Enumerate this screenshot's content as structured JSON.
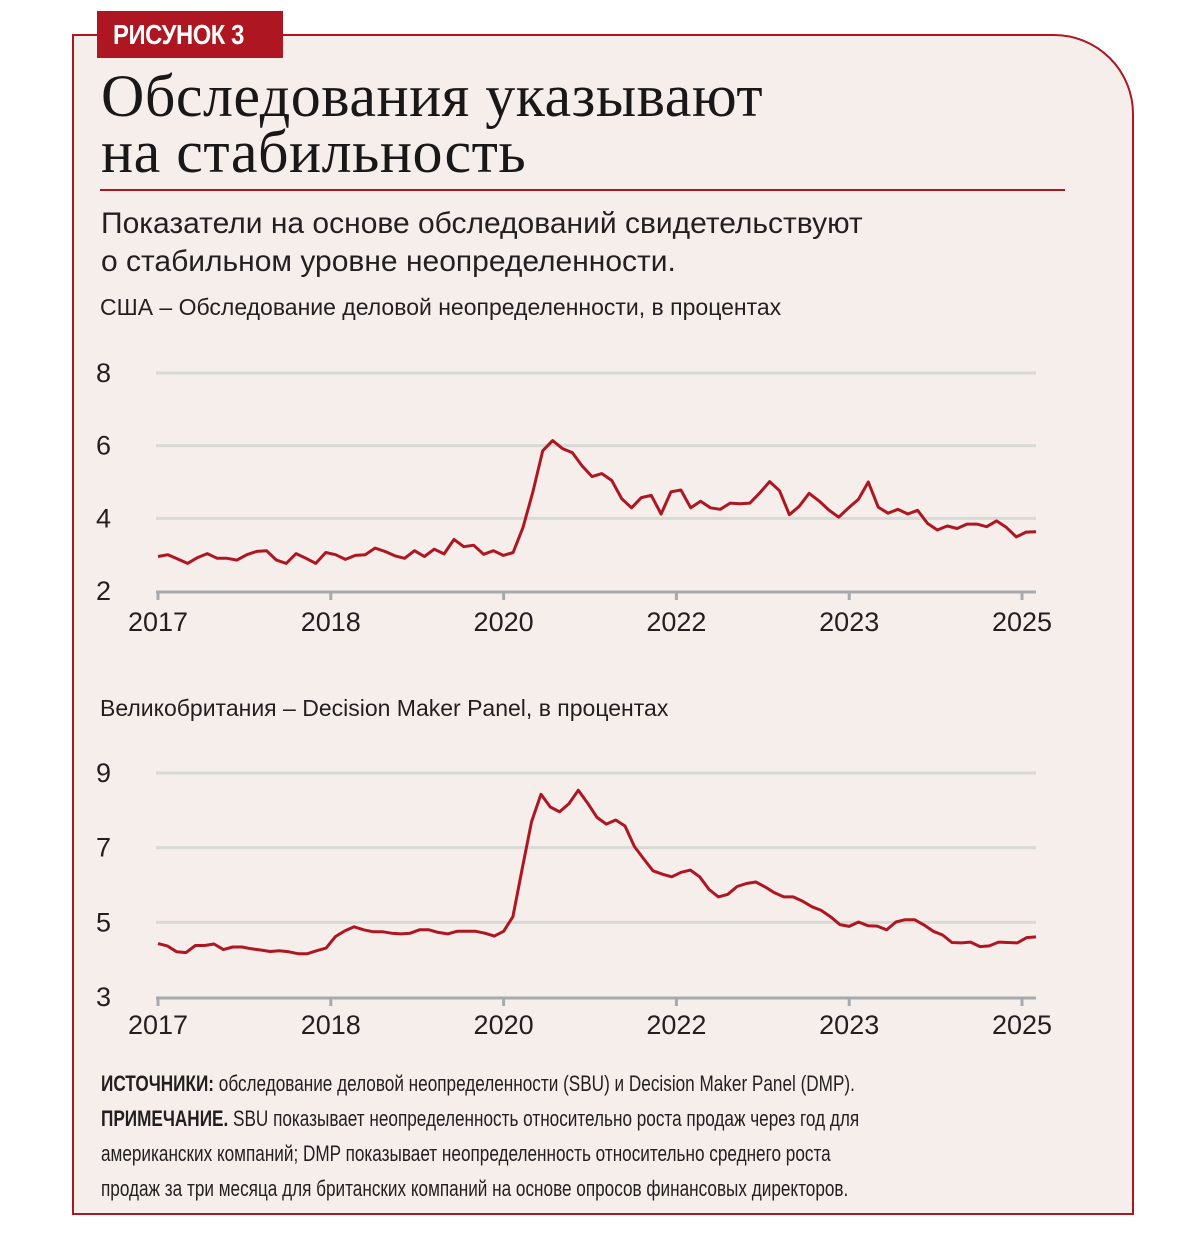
{
  "figure_label": "РИСУНОК 3",
  "title_lines": [
    "Обследования указывают",
    "на стабильность"
  ],
  "subtitle_lines": [
    "Показатели на основе обследований свидетельствуют",
    "о стабильном уровне неопределенности."
  ],
  "colors": {
    "accent": "#ae1622",
    "background": "#f6eeeb",
    "grid": "#d9d9d6",
    "axis": "#a7a9ac"
  },
  "chart_data": [
    {
      "type": "line",
      "title": "США – Обследование деловой неопределенности, в процентах",
      "x_tick_labels": [
        "2017",
        "2018",
        "2020",
        "2022",
        "2023",
        "2025"
      ],
      "y_ticks": [
        2,
        4,
        6,
        8
      ],
      "ylim": [
        2,
        8
      ],
      "grid": true,
      "values": [
        2.95,
        3.0,
        2.88,
        2.76,
        2.92,
        3.03,
        2.9,
        2.9,
        2.85,
        3.0,
        3.09,
        3.11,
        2.85,
        2.76,
        3.03,
        2.9,
        2.76,
        3.06,
        3.0,
        2.87,
        2.98,
        3.0,
        3.18,
        3.09,
        2.97,
        2.9,
        3.11,
        2.95,
        3.15,
        3.02,
        3.42,
        3.22,
        3.26,
        3.01,
        3.11,
        2.98,
        3.06,
        3.75,
        4.73,
        5.86,
        6.14,
        5.92,
        5.81,
        5.44,
        5.15,
        5.23,
        5.04,
        4.54,
        4.29,
        4.57,
        4.63,
        4.12,
        4.73,
        4.78,
        4.29,
        4.47,
        4.29,
        4.25,
        4.42,
        4.4,
        4.42,
        4.7,
        5.01,
        4.76,
        4.1,
        4.33,
        4.69,
        4.48,
        4.23,
        4.03,
        4.29,
        4.52,
        5.0,
        4.31,
        4.14,
        4.25,
        4.12,
        4.22,
        3.86,
        3.68,
        3.79,
        3.72,
        3.84,
        3.84,
        3.77,
        3.93,
        3.75,
        3.49,
        3.62,
        3.63
      ]
    },
    {
      "type": "line",
      "title": "Великобритания – Decision Maker Panel, в процентах",
      "x_tick_labels": [
        "2017",
        "2018",
        "2020",
        "2022",
        "2023",
        "2025"
      ],
      "y_ticks": [
        3,
        5,
        7,
        9
      ],
      "ylim": [
        3,
        9
      ],
      "grid": true,
      "values": [
        4.43,
        4.37,
        4.21,
        4.19,
        4.38,
        4.38,
        4.42,
        4.27,
        4.34,
        4.34,
        4.29,
        4.26,
        4.22,
        4.24,
        4.21,
        4.16,
        4.16,
        4.24,
        4.31,
        4.62,
        4.77,
        4.88,
        4.8,
        4.75,
        4.75,
        4.71,
        4.69,
        4.71,
        4.8,
        4.8,
        4.73,
        4.69,
        4.76,
        4.76,
        4.76,
        4.71,
        4.63,
        4.76,
        5.15,
        6.45,
        7.7,
        8.43,
        8.09,
        7.96,
        8.18,
        8.54,
        8.19,
        7.81,
        7.63,
        7.74,
        7.58,
        7.03,
        6.7,
        6.38,
        6.29,
        6.22,
        6.34,
        6.4,
        6.22,
        5.88,
        5.68,
        5.75,
        5.96,
        6.04,
        6.08,
        5.95,
        5.79,
        5.68,
        5.68,
        5.57,
        5.42,
        5.32,
        5.15,
        4.94,
        4.89,
        5.01,
        4.91,
        4.9,
        4.8,
        5.01,
        5.07,
        5.07,
        4.93,
        4.76,
        4.66,
        4.46,
        4.45,
        4.47,
        4.35,
        4.37,
        4.47,
        4.46,
        4.45,
        4.59,
        4.61
      ]
    }
  ],
  "notes": {
    "sources_label": "ИСТОЧНИКИ:",
    "sources_text": " обследование деловой неопределенности (SBU) и Decision Maker Panel (DMP).",
    "note_label": "ПРИМЕЧАНИЕ.",
    "note_line1": " SBU показывает неопределенность относительно роста продаж через год для",
    "note_line2": "американских компаний; DMP показывает неопределенность относительно среднего роста",
    "note_line3": "продаж за три месяца для британских компаний на основе опросов финансовых директоров."
  }
}
